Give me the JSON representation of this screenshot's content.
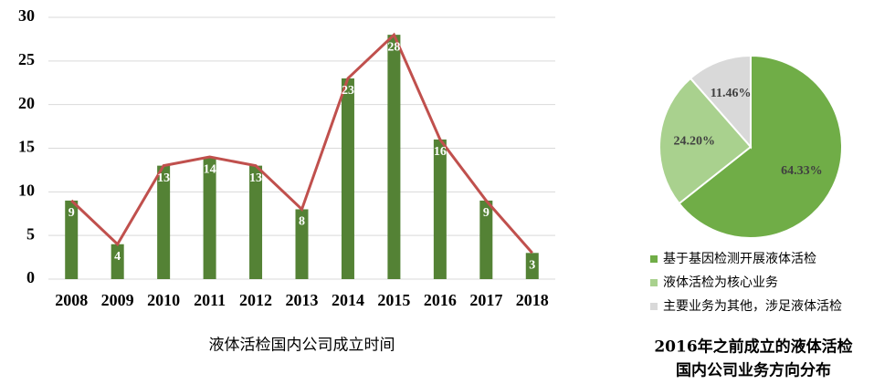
{
  "chart_data": [
    {
      "type": "bar",
      "title": "液体活检国内公司成立时间",
      "categories": [
        "2008",
        "2009",
        "2010",
        "2011",
        "2012",
        "2013",
        "2014",
        "2015",
        "2016",
        "2017",
        "2018"
      ],
      "values": [
        9,
        4,
        13,
        14,
        13,
        8,
        23,
        28,
        16,
        9,
        3
      ],
      "color": "#548235",
      "line": true,
      "line_color": "#c0504d",
      "ylim": [
        0,
        30
      ],
      "yticks": [
        0,
        5,
        10,
        15,
        20,
        25,
        30
      ],
      "grid": true
    },
    {
      "type": "pie",
      "title": [
        "2016年之前成立的液体活检",
        "国内公司业务方向分布"
      ],
      "categories": [
        "基于基因检测开展液体活检",
        "液体活检为核心业务",
        "主要业务为其他，涉足液体活检"
      ],
      "values": [
        64.33,
        24.2,
        11.46
      ],
      "value_labels": [
        "64.33%",
        "24.20%",
        "11.46%"
      ],
      "colors": [
        "#70ad47",
        "#a9d18e",
        "#d9d9d9"
      ],
      "legend": "bottom"
    }
  ]
}
